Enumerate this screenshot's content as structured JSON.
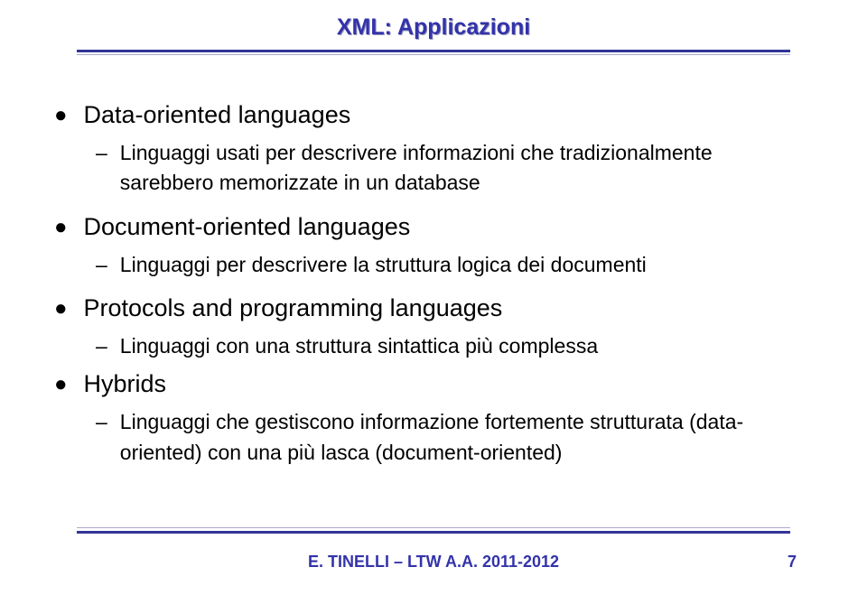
{
  "title": "XML: Applicazioni",
  "sections": [
    {
      "heading": "Data-oriented languages",
      "sub": "Linguaggi usati per descrivere informazioni che tradizionalmente sarebbero memorizzate in un database"
    },
    {
      "heading": "Document-oriented languages",
      "sub": "Linguaggi per descrivere la struttura logica dei documenti"
    },
    {
      "heading": "Protocols and programming languages",
      "sub": "Linguaggi con una struttura sintattica più complessa"
    },
    {
      "heading": "Hybrids",
      "sub": "Linguaggi che gestiscono informazione fortemente strutturata (data-oriented) con una più lasca (document-oriented)"
    }
  ],
  "footer": "E. TINELLI – LTW  A.A. 2011-2012",
  "page_number": "7",
  "colors": {
    "title_color": "#3333aa",
    "line_color": "#333399",
    "thin_line_color": "#aaaacc",
    "text_color": "#000000",
    "background": "#ffffff"
  },
  "fonts": {
    "title_size": 25,
    "h1_size": 27,
    "sub_size": 23,
    "footer_size": 18
  }
}
